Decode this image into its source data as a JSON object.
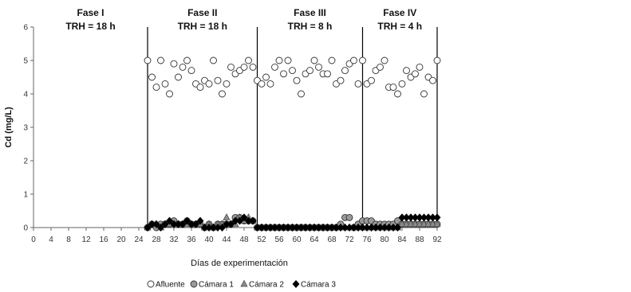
{
  "chart_data": {
    "type": "scatter",
    "title": "",
    "xlabel": "Días de experimentación",
    "ylabel": "Cd (mg/L)",
    "xlim": [
      0,
      92
    ],
    "ylim": [
      0,
      6
    ],
    "xticks": [
      "0",
      "4",
      "8",
      "12",
      "16",
      "20",
      "24",
      "28",
      "32",
      "36",
      "40",
      "44",
      "48",
      "52",
      "56",
      "60",
      "64",
      "68",
      "72",
      "76",
      "80",
      "84",
      "88",
      "92"
    ],
    "yticks": [
      "0",
      "1",
      "2",
      "3",
      "4",
      "5",
      "6"
    ],
    "grid": false,
    "legend_position": "bottom",
    "phases": [
      {
        "name": "Fase I",
        "label": "TRH = 18 h",
        "start": 0,
        "end": 26
      },
      {
        "name": "Fase II",
        "label": "TRH = 18 h",
        "start": 26,
        "end": 51
      },
      {
        "name": "Fase III",
        "label": "TRH = 8 h",
        "start": 51,
        "end": 75
      },
      {
        "name": "Fase IV",
        "label": "TRH = 4 h",
        "start": 75,
        "end": 92
      }
    ],
    "phase_dividers": [
      26,
      51,
      75,
      92
    ],
    "series": [
      {
        "name": "Afluente",
        "marker": "circle-open",
        "color": "#ffffff",
        "x": [
          26,
          27,
          28,
          29,
          30,
          31,
          32,
          33,
          34,
          35,
          36,
          37,
          38,
          39,
          40,
          41,
          42,
          43,
          44,
          45,
          46,
          47,
          48,
          49,
          50,
          51,
          52,
          53,
          54,
          55,
          56,
          57,
          58,
          59,
          60,
          61,
          62,
          63,
          64,
          65,
          66,
          67,
          68,
          69,
          70,
          71,
          72,
          73,
          74,
          75,
          76,
          77,
          78,
          79,
          80,
          81,
          82,
          83,
          84,
          85,
          86,
          87,
          88,
          89,
          90,
          91,
          92
        ],
        "y": [
          5.0,
          4.5,
          4.2,
          5.0,
          4.3,
          4.0,
          4.9,
          4.5,
          4.8,
          5.0,
          4.7,
          4.3,
          4.2,
          4.4,
          4.3,
          5.0,
          4.4,
          4.0,
          4.3,
          4.8,
          4.6,
          4.7,
          4.8,
          5.0,
          4.8,
          4.4,
          4.3,
          4.5,
          4.3,
          4.8,
          5.0,
          4.6,
          5.0,
          4.7,
          4.4,
          4.0,
          4.6,
          4.7,
          5.0,
          4.8,
          4.6,
          4.6,
          5.0,
          4.3,
          4.4,
          4.7,
          4.9,
          5.0,
          4.3,
          5.0,
          4.3,
          4.4,
          4.7,
          4.8,
          5.0,
          4.2,
          4.2,
          4.0,
          4.3,
          4.7,
          4.5,
          4.6,
          4.8,
          4.0,
          4.5,
          4.4,
          5.0
        ]
      },
      {
        "name": "Cámara 1",
        "marker": "circle-filled",
        "color": "#9a9a9a",
        "x": [
          26,
          27,
          28,
          29,
          30,
          31,
          32,
          33,
          34,
          35,
          36,
          37,
          38,
          39,
          40,
          41,
          42,
          43,
          44,
          45,
          46,
          47,
          48,
          49,
          50,
          51,
          52,
          53,
          54,
          55,
          56,
          57,
          58,
          59,
          60,
          61,
          62,
          63,
          64,
          65,
          66,
          67,
          68,
          69,
          70,
          71,
          72,
          73,
          74,
          75,
          76,
          77,
          78,
          79,
          80,
          81,
          82,
          83,
          84,
          85,
          86,
          87,
          88,
          89,
          90,
          91,
          92
        ],
        "y": [
          0.0,
          0.1,
          0.0,
          0.1,
          0.1,
          0.1,
          0.2,
          0.1,
          0.1,
          0.2,
          0.1,
          0.1,
          0.1,
          0.0,
          0.1,
          0.0,
          0.1,
          0.1,
          0.1,
          0.1,
          0.3,
          0.3,
          0.2,
          0.2,
          0.2,
          0.0,
          0.0,
          0.0,
          0.0,
          0.0,
          0.0,
          0.0,
          0.0,
          0.0,
          0.0,
          0.0,
          0.0,
          0.0,
          0.0,
          0.0,
          0.0,
          0.0,
          0.0,
          0.0,
          0.1,
          0.3,
          0.3,
          0.0,
          0.1,
          0.2,
          0.2,
          0.2,
          0.1,
          0.1,
          0.1,
          0.1,
          0.1,
          0.2,
          0.1,
          0.1,
          0.1,
          0.1,
          0.1,
          0.1,
          0.1,
          0.1,
          0.1
        ]
      },
      {
        "name": "Cámara 2",
        "marker": "triangle",
        "color": "#8c8c8c",
        "x": [
          26,
          27,
          28,
          29,
          30,
          31,
          32,
          33,
          34,
          35,
          36,
          37,
          38,
          39,
          40,
          41,
          42,
          43,
          44,
          45,
          46,
          47,
          48,
          49,
          50,
          51,
          52,
          53,
          54,
          55,
          56,
          57,
          58,
          59,
          60,
          61,
          62,
          63,
          64,
          65,
          66,
          67,
          68,
          69,
          70,
          71,
          72,
          73,
          74,
          75,
          76,
          77,
          78,
          79,
          80,
          81,
          82,
          83,
          84,
          85,
          86,
          87,
          88,
          89,
          90,
          91,
          92
        ],
        "y": [
          0.0,
          0.1,
          0.1,
          0.0,
          0.1,
          0.1,
          0.1,
          0.1,
          0.1,
          0.1,
          0.1,
          0.1,
          0.1,
          0.0,
          0.1,
          0.0,
          0.1,
          0.1,
          0.3,
          0.1,
          0.1,
          0.3,
          0.2,
          0.3,
          0.2,
          0.0,
          0.0,
          0.0,
          0.0,
          0.0,
          0.0,
          0.0,
          0.0,
          0.0,
          0.0,
          0.0,
          0.0,
          0.0,
          0.0,
          0.0,
          0.0,
          0.0,
          0.0,
          0.0,
          0.0,
          0.0,
          0.0,
          0.0,
          0.0,
          0.0,
          0.0,
          0.0,
          0.0,
          0.0,
          0.0,
          0.0,
          0.0,
          0.0,
          0.1,
          0.1,
          0.1,
          0.1,
          0.1,
          0.1,
          0.1,
          0.1,
          0.1
        ]
      },
      {
        "name": "Cámara 3",
        "marker": "diamond",
        "color": "#000000",
        "x": [
          26,
          27,
          28,
          29,
          30,
          31,
          32,
          33,
          34,
          35,
          36,
          37,
          38,
          39,
          40,
          41,
          42,
          43,
          44,
          45,
          46,
          47,
          48,
          49,
          50,
          51,
          52,
          53,
          54,
          55,
          56,
          57,
          58,
          59,
          60,
          61,
          62,
          63,
          64,
          65,
          66,
          67,
          68,
          69,
          70,
          71,
          72,
          73,
          74,
          75,
          76,
          77,
          78,
          79,
          80,
          81,
          82,
          83,
          84,
          85,
          86,
          87,
          88,
          89,
          90,
          91,
          92
        ],
        "y": [
          0.0,
          0.1,
          0.1,
          0.0,
          0.1,
          0.2,
          0.1,
          0.1,
          0.1,
          0.2,
          0.1,
          0.1,
          0.2,
          0.0,
          0.0,
          0.0,
          0.0,
          0.0,
          0.1,
          0.1,
          0.2,
          0.2,
          0.3,
          0.2,
          0.2,
          0.0,
          0.0,
          0.0,
          0.0,
          0.0,
          0.0,
          0.0,
          0.0,
          0.0,
          0.0,
          0.0,
          0.0,
          0.0,
          0.0,
          0.0,
          0.0,
          0.0,
          0.0,
          0.0,
          0.0,
          0.0,
          0.0,
          0.0,
          0.0,
          0.0,
          0.0,
          0.0,
          0.0,
          0.0,
          0.0,
          0.0,
          0.0,
          0.0,
          0.3,
          0.3,
          0.3,
          0.3,
          0.3,
          0.3,
          0.3,
          0.3,
          0.3
        ]
      }
    ]
  }
}
